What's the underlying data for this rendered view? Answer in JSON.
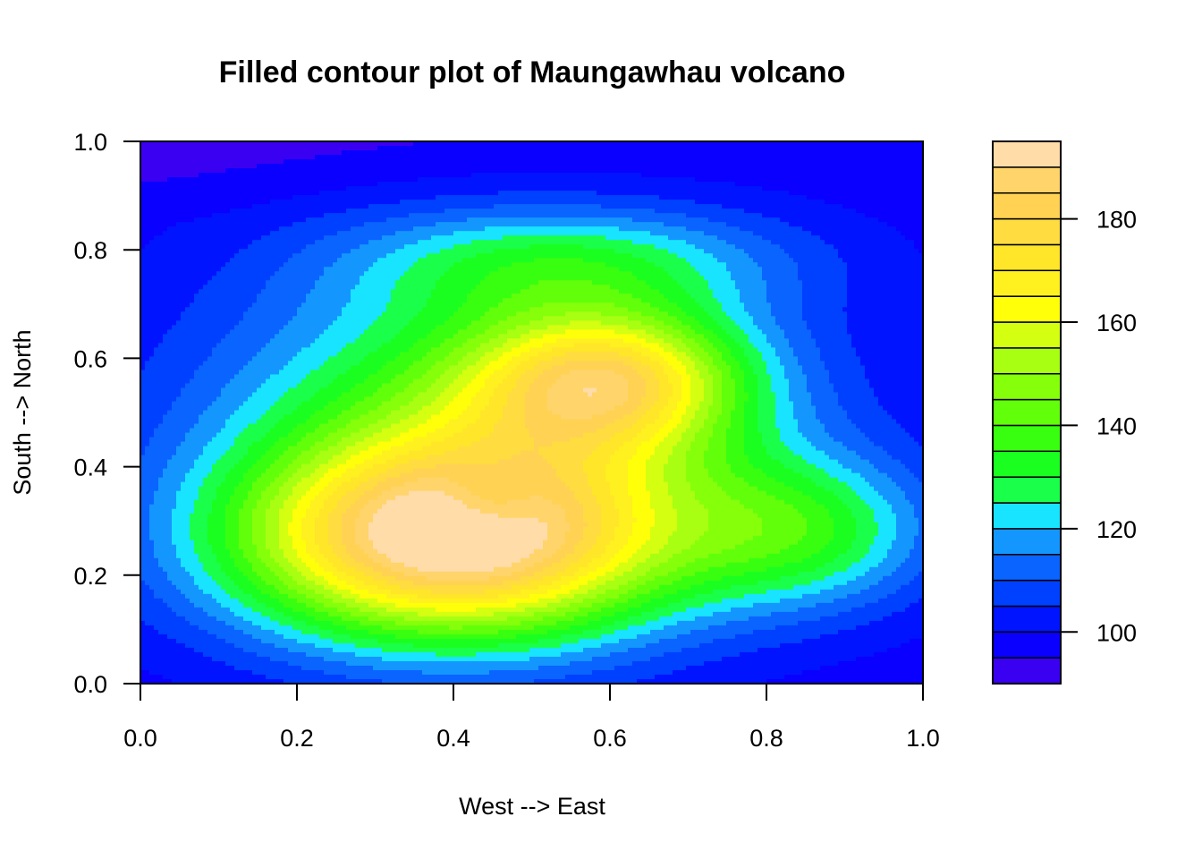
{
  "chart_data": {
    "type": "heatmap",
    "subtype": "filled-contour",
    "title": "Filled contour plot of Maungawhau volcano",
    "xlabel": "West --> East",
    "ylabel": "South --> North",
    "xlim": [
      0,
      1
    ],
    "ylim": [
      0,
      1
    ],
    "x_ticks": [
      "0.0",
      "0.2",
      "0.4",
      "0.6",
      "0.8",
      "1.0"
    ],
    "y_ticks": [
      "0.0",
      "0.2",
      "0.4",
      "0.6",
      "0.8",
      "1.0"
    ],
    "grid": false,
    "legend_position": "right",
    "colorbar": {
      "range": [
        90,
        195
      ],
      "level_step": 5,
      "ticks": [
        "100",
        "120",
        "140",
        "160",
        "180"
      ],
      "colors": [
        "#3a00f2",
        "#0a00ff",
        "#0014ff",
        "#0040ff",
        "#0a64ff",
        "#1496ff",
        "#18e4ff",
        "#1aff4a",
        "#1aff20",
        "#38ff10",
        "#62ff0a",
        "#86ff0a",
        "#a8ff12",
        "#d4ff10",
        "#ffff0a",
        "#fff020",
        "#ffe628",
        "#ffdc40",
        "#ffd254",
        "#ffd46a",
        "#ffdca8"
      ]
    },
    "surface": {
      "description_values": "approximate elevation (m) sampled on a regular 41 x 21 grid, x from 0 to 1 (columns), y from 0 (bottom row) to 1 (top row)",
      "base": 97,
      "peaks": [
        {
          "x": 0.4,
          "y": 0.26,
          "height": 88,
          "sx": 0.2,
          "sy": 0.13
        },
        {
          "x": 0.6,
          "y": 0.56,
          "height": 55,
          "sx": 0.12,
          "sy": 0.09
        },
        {
          "x": 0.45,
          "y": 0.5,
          "height": 40,
          "sx": 0.25,
          "sy": 0.2
        },
        {
          "x": 0.85,
          "y": 0.28,
          "height": 30,
          "sx": 0.12,
          "sy": 0.1
        },
        {
          "x": 0.55,
          "y": 0.78,
          "height": 22,
          "sx": 0.2,
          "sy": 0.07
        }
      ],
      "crater": {
        "x": 0.445,
        "y": 0.335,
        "depth": 14,
        "radius": 0.045
      }
    }
  }
}
